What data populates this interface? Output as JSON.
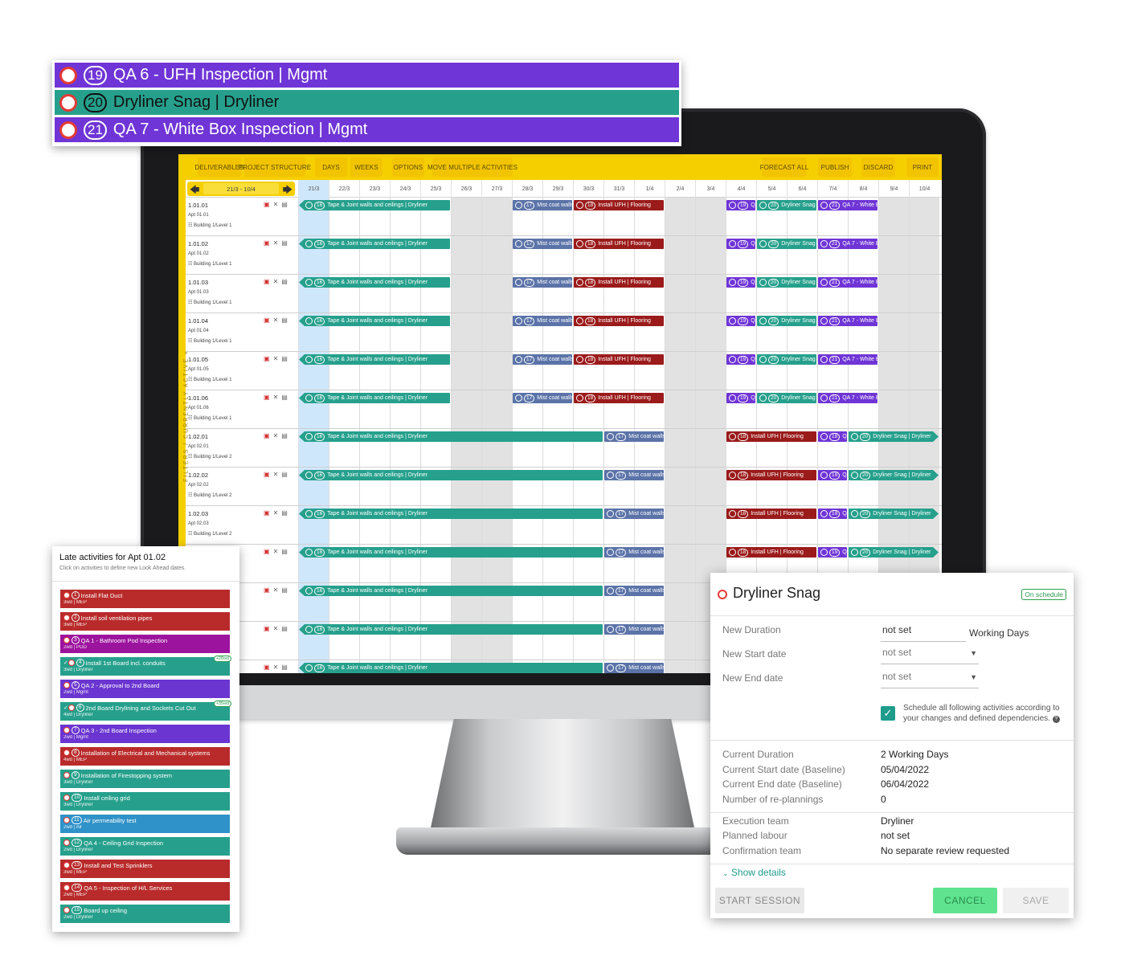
{
  "toolbar": {
    "deliverables": "DELIVERABLES",
    "project_structure": "PROJECT STRUCTURE",
    "days": "DAYS",
    "weeks": "WEEKS",
    "options": "OPTIONS",
    "move_multiple": "MOVE MULTIPLE ACTIVITIES",
    "forecast_all": "FORECAST ALL",
    "publish": "PUBLISH",
    "discard": "DISCARD",
    "print": "PRINT"
  },
  "filter_strip": "FILTERS / CURRENTLY ACTIVE »",
  "date_range": "21/3 - 10/4",
  "days": [
    "21/3",
    "22/3",
    "23/3",
    "24/3",
    "25/3",
    "26/3",
    "27/3",
    "28/3",
    "29/3",
    "30/3",
    "31/3",
    "1/4",
    "2/4",
    "3/4",
    "4/4",
    "5/4",
    "6/4",
    "7/4",
    "8/4",
    "9/4",
    "10/4"
  ],
  "activity_labels": {
    "tape": "Tape & Joint walls and ceilings | Dryliner",
    "mist": "Mist coat walls",
    "ufh": "Install UFH | Flooring",
    "qa6_short": "QA",
    "dry_short": "Dryliner Snag | D",
    "dry_long": "Dryliner Snag | Dryliner",
    "qa7_short": "QA 7 - White Bo",
    "n16": "16",
    "n17": "17",
    "n18": "18",
    "n19": "19",
    "n20": "20",
    "n21": "21"
  },
  "rows": [
    {
      "code": "1.01.01",
      "apt": "Apt 01.01",
      "loc": "Building 1/Level 1"
    },
    {
      "code": "1.01.02",
      "apt": "Apt 01.02",
      "loc": "Building 1/Level 1"
    },
    {
      "code": "1.01.03",
      "apt": "Apt 01.03",
      "loc": "Building 1/Level 1"
    },
    {
      "code": "1.01.04",
      "apt": "Apt 01.04",
      "loc": "Building 1/Level 1"
    },
    {
      "code": "1.01.05",
      "apt": "Apt 01.05",
      "loc": "Building 1/Level 1"
    },
    {
      "code": "1.01.06",
      "apt": "Apt 01.06",
      "loc": "Building 1/Level 1"
    },
    {
      "code": "1.02.01",
      "apt": "Apt 02.01",
      "loc": "Building 1/Level 2"
    },
    {
      "code": "1.02.02",
      "apt": "Apt 02.02",
      "loc": "Building 1/Level 2"
    },
    {
      "code": "1.02.03",
      "apt": "Apt 02.03",
      "loc": "Building 1/Level 2"
    },
    {
      "code": "",
      "apt": "",
      "loc": ""
    },
    {
      "code": "",
      "apt": "",
      "loc": ""
    },
    {
      "code": "",
      "apt": "",
      "loc": ""
    },
    {
      "code": "",
      "apt": "",
      "loc": ""
    }
  ],
  "float_activities": [
    {
      "num": "19",
      "text": "QA 6 - UFH Inspection | Mgmt",
      "color": "#6f35d6"
    },
    {
      "num": "20",
      "text": "Dryliner Snag | Dryliner",
      "color": "#26a08c"
    },
    {
      "num": "21",
      "text": "QA 7 - White Box Inspection | Mgmt",
      "color": "#6f35d6"
    }
  ],
  "late_panel": {
    "title": "Late activities for Apt 01.02",
    "subtitle": "Click on activities to define new Look Ahead dates.",
    "items": [
      {
        "num": "1",
        "text": "Install Flat Duct",
        "sub": "3wd | MEP",
        "color": "red",
        "badge": ""
      },
      {
        "num": "2",
        "text": "Install soil ventilation pipes",
        "sub": "3wd | MEP",
        "color": "red",
        "badge": ""
      },
      {
        "num": "3",
        "text": "QA 1 - Bathroom Pod Inspection",
        "sub": "2wd | POD",
        "color": "magenta",
        "badge": ""
      },
      {
        "num": "4",
        "text": "Install 1st Board incl. conduits",
        "sub": "3wd | Dryliner",
        "color": "teal",
        "badge": "+28wd"
      },
      {
        "num": "5",
        "text": "QA 2 - Approval to 2nd Board",
        "sub": "2wd | Mgmt",
        "color": "purple",
        "badge": ""
      },
      {
        "num": "6",
        "text": "2nd Board Drylining and Sockets Cut Out",
        "sub": "4wd | Dryliner",
        "color": "teal",
        "badge": "+35wd"
      },
      {
        "num": "7",
        "text": "QA 3 - 2nd Board Inspection",
        "sub": "2wd | Mgmt",
        "color": "purple",
        "badge": ""
      },
      {
        "num": "8",
        "text": "Installation of Electrical and Mechanical systems",
        "sub": "4wd | MEP",
        "color": "red",
        "badge": ""
      },
      {
        "num": "9",
        "text": "Installation of Firestopping system",
        "sub": "3wd | Dryliner",
        "color": "teal",
        "badge": ""
      },
      {
        "num": "10",
        "text": "Install ceiling grid",
        "sub": "3wd | Dryliner",
        "color": "teal",
        "badge": ""
      },
      {
        "num": "11",
        "text": "Air permeability test",
        "sub": "2wd | Air",
        "color": "blue",
        "badge": ""
      },
      {
        "num": "12",
        "text": "QA 4 - Ceiling Grid Inspection",
        "sub": "2wd | Dryliner",
        "color": "teal",
        "badge": ""
      },
      {
        "num": "13",
        "text": "Install and Test Sprinklers",
        "sub": "3wd | MEP",
        "color": "red",
        "badge": ""
      },
      {
        "num": "14",
        "text": "QA 5 - Inspection of H/L Services",
        "sub": "2wd | MEP",
        "color": "red",
        "badge": ""
      },
      {
        "num": "15",
        "text": "Board up ceiling",
        "sub": "2wd | Dryliner",
        "color": "teal",
        "badge": ""
      }
    ]
  },
  "dialog": {
    "title": "Dryliner Snag",
    "status": "On schedule",
    "new_duration_label": "New Duration",
    "new_duration_value": "not set",
    "duration_unit": "Working Days",
    "new_start_label": "New Start date",
    "new_start_value": "not set",
    "new_end_label": "New End date",
    "new_end_value": "not set",
    "checkbox_text": "Schedule all following activities according to your changes and defined dependencies.",
    "current_duration_label": "Current Duration",
    "current_duration_value": "2 Working Days",
    "current_start_label": "Current Start date (Baseline)",
    "current_start_value": "05/04/2022",
    "current_end_label": "Current End date (Baseline)",
    "current_end_value": "06/04/2022",
    "replannings_label": "Number of re-plannings",
    "replannings_value": "0",
    "execution_team_label": "Execution team",
    "execution_team_value": "Dryliner",
    "planned_labour_label": "Planned labour",
    "planned_labour_value": "not set",
    "confirmation_team_label": "Confirmation team",
    "confirmation_team_value": "No separate review requested",
    "show_details": "Show details",
    "start_session": "START SESSION",
    "cancel": "CANCEL",
    "save": "SAVE"
  }
}
